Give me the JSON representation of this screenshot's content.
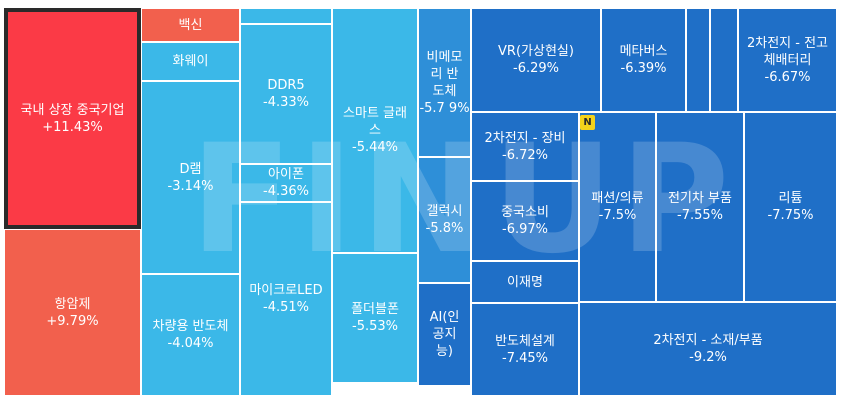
{
  "chart_data": {
    "type": "treemap",
    "items": [
      {
        "name": "국내 상장 중국기업",
        "change": "+11.43%",
        "value": 11.43,
        "color": "#fb3a46",
        "selected": true
      },
      {
        "name": "항암제",
        "change": "+9.79%",
        "value": 9.79,
        "color": "#f2604d"
      },
      {
        "name": "백신",
        "change": "",
        "color": "#f2604d"
      },
      {
        "name": "화웨이",
        "change": "",
        "color": "#3bb8e8"
      },
      {
        "name": "D램",
        "change": "-3.14%",
        "value": -3.14,
        "color": "#3bb8e8"
      },
      {
        "name": "차량용 반도체",
        "change": "-4.04%",
        "value": -4.04,
        "color": "#3bb8e8"
      },
      {
        "name": "DDR5",
        "change": "-4.33%",
        "value": -4.33,
        "color": "#3bb8e8"
      },
      {
        "name": "아이폰",
        "change": "-4.36%",
        "value": -4.36,
        "color": "#3bb8e8"
      },
      {
        "name": "마이크로LED",
        "change": "-4.51%",
        "value": -4.51,
        "color": "#3bb8e8"
      },
      {
        "name": "스마트 글래\n스",
        "change": "-5.44%",
        "value": -5.44,
        "color": "#3bb8e8"
      },
      {
        "name": "폴더블폰",
        "change": "-5.53%",
        "value": -5.53,
        "color": "#3bb8e8"
      },
      {
        "name": "비메모\n리 반\n도체",
        "change": "-5.7\n9%",
        "value": -5.79,
        "color": "#2e8fd8"
      },
      {
        "name": "갤럭시",
        "change": "-5.8%",
        "value": -5.8,
        "color": "#2e8fd8"
      },
      {
        "name": "AI(인\n공지\n능)",
        "change": "",
        "color": "#1f6fc7"
      },
      {
        "name": "VR(가상현실)",
        "change": "-6.29%",
        "value": -6.29,
        "color": "#1f6fc7"
      },
      {
        "name": "메타버스",
        "change": "-6.39%",
        "value": -6.39,
        "color": "#1f6fc7"
      },
      {
        "name": "",
        "change": "",
        "color": "#1f6fc7"
      },
      {
        "name": "",
        "change": "",
        "color": "#1f6fc7"
      },
      {
        "name": "2차전지 - 전고\n체배터리",
        "change": "-6.67%",
        "value": -6.67,
        "color": "#1f6fc7"
      },
      {
        "name": "2차전지 - 장비",
        "change": "-6.72%",
        "value": -6.72,
        "color": "#1f6fc7"
      },
      {
        "name": "중국소비",
        "change": "-6.97%",
        "value": -6.97,
        "color": "#1f6fc7"
      },
      {
        "name": "이재명",
        "change": "",
        "color": "#1f6fc7"
      },
      {
        "name": "반도체설계",
        "change": "-7.45%",
        "value": -7.45,
        "color": "#1f6fc7"
      },
      {
        "name": "패션/의류",
        "change": "-7.5%",
        "value": -7.5,
        "color": "#1f6fc7"
      },
      {
        "name": "전기차 부품",
        "change": "-7.55%",
        "value": -7.55,
        "color": "#1f6fc7"
      },
      {
        "name": "리튬",
        "change": "-7.75%",
        "value": -7.75,
        "color": "#1f6fc7"
      },
      {
        "name": "2차전지 - 소재/부품",
        "change": "-9.2%",
        "value": -9.2,
        "color": "#1f6fc7"
      }
    ]
  },
  "badge": {
    "text": "N"
  },
  "watermark": {
    "text": "FINUP"
  }
}
